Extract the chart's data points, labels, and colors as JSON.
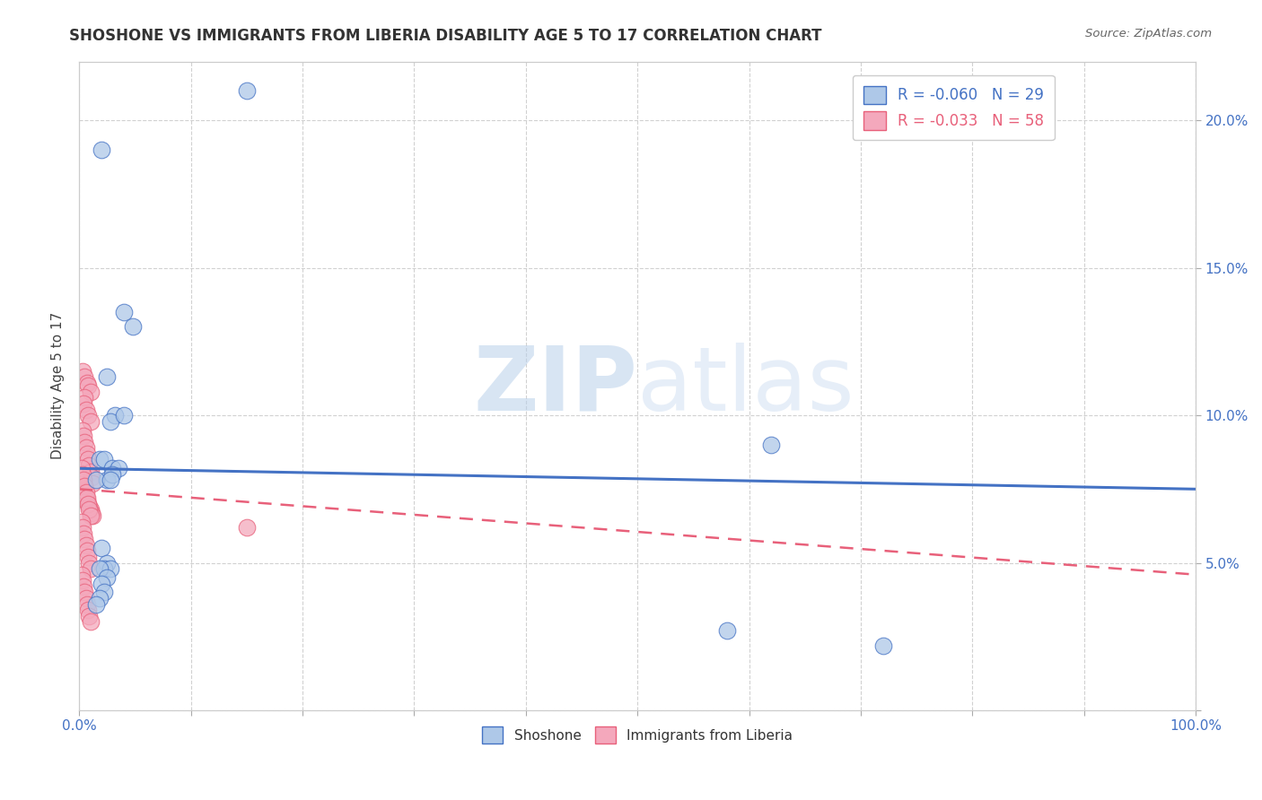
{
  "title": "SHOSHONE VS IMMIGRANTS FROM LIBERIA DISABILITY AGE 5 TO 17 CORRELATION CHART",
  "source": "Source: ZipAtlas.com",
  "ylabel": "Disability Age 5 to 17",
  "xlim": [
    0,
    1.0
  ],
  "ylim": [
    0,
    0.22
  ],
  "shoshone_R": -0.06,
  "shoshone_N": 29,
  "liberia_R": -0.033,
  "liberia_N": 58,
  "shoshone_color": "#aec8e8",
  "liberia_color": "#f4a8bc",
  "shoshone_line_color": "#4472c4",
  "liberia_line_color": "#e8607a",
  "shoshone_x": [
    0.02,
    0.04,
    0.15,
    0.048,
    0.025,
    0.032,
    0.028,
    0.018,
    0.022,
    0.03,
    0.035,
    0.04,
    0.025,
    0.03,
    0.015,
    0.02,
    0.025,
    0.022,
    0.028,
    0.018,
    0.025,
    0.02,
    0.022,
    0.018,
    0.015,
    0.62,
    0.58,
    0.72,
    0.028
  ],
  "shoshone_y": [
    0.19,
    0.135,
    0.21,
    0.13,
    0.113,
    0.1,
    0.098,
    0.085,
    0.085,
    0.082,
    0.082,
    0.1,
    0.078,
    0.08,
    0.078,
    0.055,
    0.05,
    0.048,
    0.048,
    0.048,
    0.045,
    0.043,
    0.04,
    0.038,
    0.036,
    0.09,
    0.027,
    0.022,
    0.078
  ],
  "liberia_x": [
    0.003,
    0.005,
    0.007,
    0.008,
    0.01,
    0.005,
    0.004,
    0.006,
    0.008,
    0.01,
    0.003,
    0.004,
    0.005,
    0.006,
    0.007,
    0.008,
    0.009,
    0.01,
    0.011,
    0.012,
    0.003,
    0.004,
    0.005,
    0.006,
    0.007,
    0.008,
    0.009,
    0.01,
    0.011,
    0.012,
    0.002,
    0.003,
    0.004,
    0.005,
    0.006,
    0.007,
    0.008,
    0.009,
    0.01,
    0.002,
    0.003,
    0.004,
    0.005,
    0.006,
    0.007,
    0.008,
    0.009,
    0.01,
    0.002,
    0.003,
    0.004,
    0.005,
    0.006,
    0.007,
    0.008,
    0.009,
    0.01,
    0.15
  ],
  "liberia_y": [
    0.115,
    0.113,
    0.111,
    0.11,
    0.108,
    0.106,
    0.104,
    0.102,
    0.1,
    0.098,
    0.095,
    0.093,
    0.091,
    0.089,
    0.087,
    0.085,
    0.083,
    0.081,
    0.079,
    0.077,
    0.075,
    0.074,
    0.073,
    0.072,
    0.071,
    0.07,
    0.069,
    0.068,
    0.067,
    0.066,
    0.082,
    0.08,
    0.078,
    0.076,
    0.074,
    0.072,
    0.07,
    0.068,
    0.066,
    0.064,
    0.062,
    0.06,
    0.058,
    0.056,
    0.054,
    0.052,
    0.05,
    0.048,
    0.046,
    0.044,
    0.042,
    0.04,
    0.038,
    0.036,
    0.034,
    0.032,
    0.03,
    0.062
  ],
  "shoshone_line_y0": 0.082,
  "shoshone_line_y1": 0.075,
  "liberia_line_y0": 0.075,
  "liberia_line_y1": 0.046,
  "watermark_zip": "ZIP",
  "watermark_atlas": "atlas",
  "bg_color": "#ffffff"
}
